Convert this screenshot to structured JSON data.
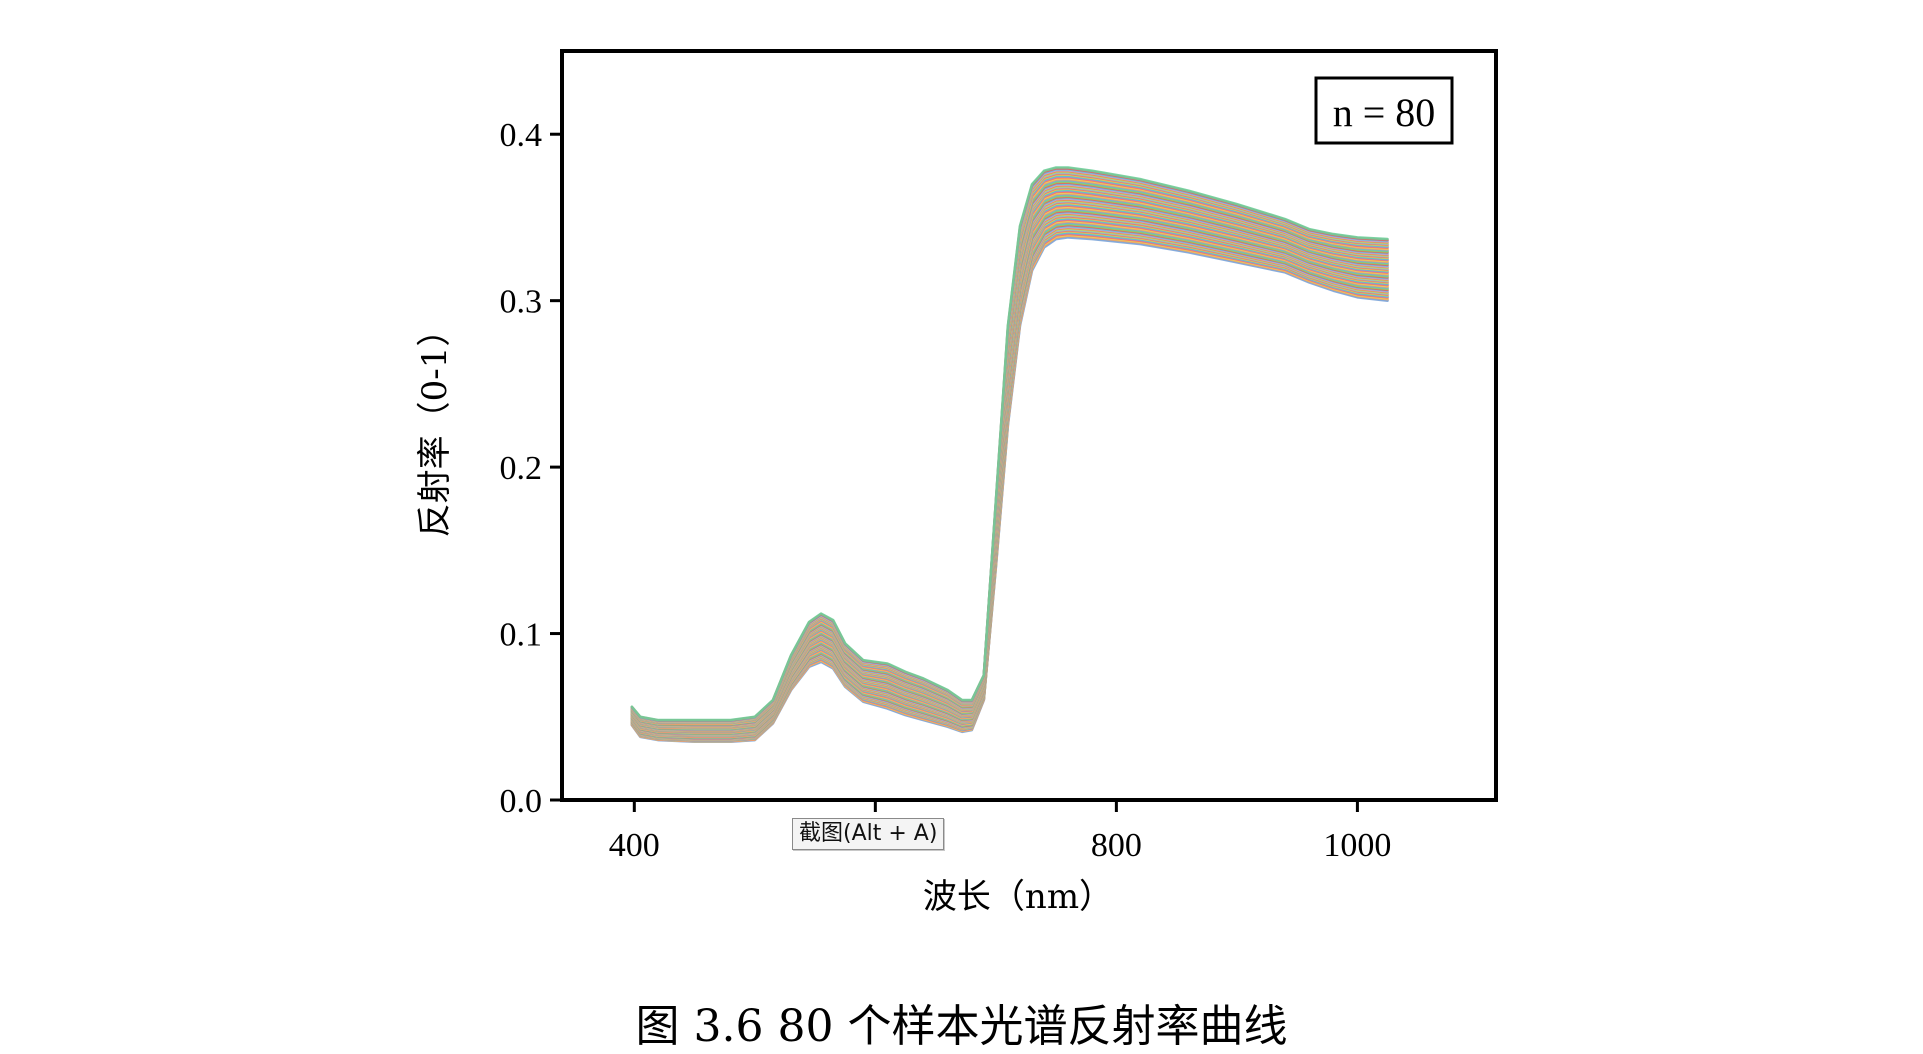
{
  "chart_data": {
    "type": "line",
    "title": "",
    "xlabel": "波长（nm）",
    "ylabel": "反射率（0-1）",
    "xlim": [
      340,
      1115
    ],
    "ylim": [
      0,
      0.45
    ],
    "xticks": [
      400,
      600,
      800,
      1000
    ],
    "xtick_labels": [
      "400",
      "",
      "800",
      "1000"
    ],
    "yticks": [
      0.0,
      0.1,
      0.2,
      0.3,
      0.4
    ],
    "ytick_labels": [
      "0.0",
      "0.1",
      "0.2",
      "0.3",
      "0.4"
    ],
    "grid": false,
    "legend": "none",
    "annotation": "n = 80",
    "series_count": 80,
    "x": [
      398,
      405,
      420,
      450,
      480,
      500,
      515,
      530,
      545,
      555,
      565,
      575,
      590,
      610,
      625,
      640,
      660,
      672,
      680,
      690,
      700,
      710,
      720,
      730,
      740,
      750,
      760,
      780,
      820,
      860,
      900,
      940,
      960,
      980,
      1000,
      1025
    ],
    "series_low": {
      "color": "#7ea6d9",
      "values": [
        0.045,
        0.038,
        0.036,
        0.035,
        0.035,
        0.036,
        0.046,
        0.066,
        0.08,
        0.083,
        0.079,
        0.068,
        0.059,
        0.055,
        0.051,
        0.048,
        0.044,
        0.041,
        0.042,
        0.06,
        0.14,
        0.225,
        0.285,
        0.318,
        0.332,
        0.337,
        0.338,
        0.337,
        0.334,
        0.329,
        0.323,
        0.317,
        0.311,
        0.306,
        0.302,
        0.3
      ]
    },
    "series_high": {
      "color": "#6ecf9a",
      "values": [
        0.056,
        0.05,
        0.048,
        0.048,
        0.048,
        0.05,
        0.06,
        0.087,
        0.107,
        0.112,
        0.108,
        0.094,
        0.084,
        0.082,
        0.077,
        0.073,
        0.066,
        0.06,
        0.06,
        0.075,
        0.18,
        0.285,
        0.345,
        0.37,
        0.378,
        0.38,
        0.38,
        0.378,
        0.373,
        0.366,
        0.358,
        0.349,
        0.343,
        0.34,
        0.338,
        0.337
      ]
    },
    "palette": [
      "#6ecf9a",
      "#7ea6d9",
      "#f4a460",
      "#e9d35a",
      "#ff6f61",
      "#9b8fd6",
      "#4dd4c8",
      "#f7c04a",
      "#e8786e",
      "#8fb8e0",
      "#b7d96b",
      "#f08a4b",
      "#c99ee0",
      "#5bc0de",
      "#e85d5d",
      "#a7c957"
    ]
  },
  "caption": "图 3.6 80 个样本光谱反射率曲线",
  "tooltip": "截图(Alt + A)"
}
